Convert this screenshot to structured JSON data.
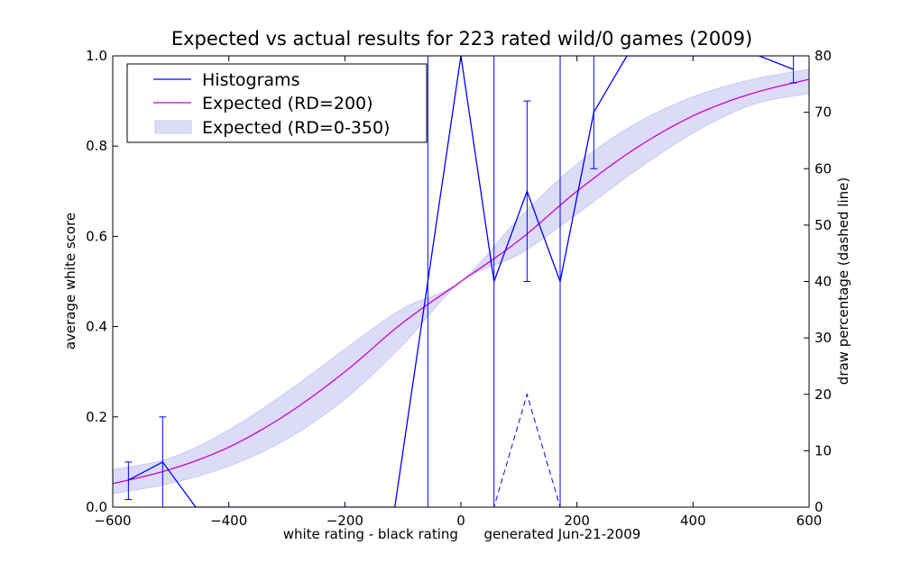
{
  "chart_data": {
    "type": "line",
    "title": "Expected vs actual results for 223 rated wild/0 games (2009)",
    "xlabel": "white rating - black rating      generated Jun-21-2009",
    "ylabel": "average white score",
    "y2label": "draw percentage (dashed line)",
    "xlim": [
      -600,
      600
    ],
    "ylim": [
      0,
      1
    ],
    "y2lim": [
      0,
      80
    ],
    "xticks": [
      -600,
      -400,
      -200,
      0,
      200,
      400,
      600
    ],
    "yticks": [
      "0.0",
      "0.2",
      "0.4",
      "0.6",
      "0.8",
      "1.0"
    ],
    "y2ticks": [
      0,
      10,
      20,
      30,
      40,
      50,
      60,
      70,
      80
    ],
    "grid": false,
    "legend_position": "top-left",
    "legend": [
      "Histograms",
      "Expected (RD=200)",
      "Expected (RD=0-350)"
    ],
    "colors": {
      "histogram": "#0000ff",
      "expected": "#cc00cc",
      "band": "#dcdcf8",
      "band_edge": "#c8c8f4"
    },
    "histogram": {
      "name": "Histograms",
      "x": [
        -573,
        -514,
        -457,
        -400,
        -343,
        -286,
        -229,
        -171,
        -114,
        -57,
        0,
        57,
        114,
        171,
        229,
        286,
        343,
        400,
        457,
        514,
        573
      ],
      "y": [
        0.06,
        0.1,
        0.0,
        0.0,
        0.0,
        0.0,
        0.0,
        0.0,
        0.0,
        0.5,
        1.0,
        0.5,
        0.7,
        0.5,
        0.875,
        1.0,
        1.0,
        1.0,
        1.0,
        1.0,
        0.97
      ]
    },
    "error_bars": [
      {
        "x": -573,
        "low": 0.017,
        "high": 0.1
      },
      {
        "x": -514,
        "low": 0.0,
        "high": 0.2
      },
      {
        "x": -57,
        "low": 0.0,
        "high": 1.0
      },
      {
        "x": 57,
        "low": 0.0,
        "high": 1.0
      },
      {
        "x": 114,
        "low": 0.5,
        "high": 0.9
      },
      {
        "x": 171,
        "low": 0.0,
        "high": 1.0
      },
      {
        "x": 229,
        "low": 0.75,
        "high": 1.0
      },
      {
        "x": 573,
        "low": 0.94,
        "high": 1.0
      }
    ],
    "draw_percentage": {
      "x": [
        -600,
        57,
        114,
        171,
        600
      ],
      "y": [
        0,
        0,
        20,
        0,
        0
      ]
    },
    "expected": {
      "name": "Expected (RD=200)",
      "x": [
        -600,
        -500,
        -400,
        -300,
        -200,
        -100,
        0,
        100,
        200,
        300,
        400,
        500,
        600
      ],
      "y": [
        0.052,
        0.084,
        0.133,
        0.206,
        0.3,
        0.409,
        0.5,
        0.591,
        0.7,
        0.794,
        0.867,
        0.916,
        0.948
      ]
    },
    "expected_band": {
      "name": "Expected (RD=0-350)",
      "x": [
        -600,
        -500,
        -400,
        -300,
        -200,
        -100,
        0,
        100,
        200,
        300,
        400,
        500,
        600
      ],
      "low": [
        0.03,
        0.053,
        0.091,
        0.151,
        0.24,
        0.36,
        0.5,
        0.56,
        0.65,
        0.745,
        0.829,
        0.891,
        0.917
      ],
      "high": [
        0.083,
        0.109,
        0.171,
        0.255,
        0.35,
        0.44,
        0.5,
        0.64,
        0.76,
        0.849,
        0.909,
        0.947,
        0.97
      ]
    }
  }
}
